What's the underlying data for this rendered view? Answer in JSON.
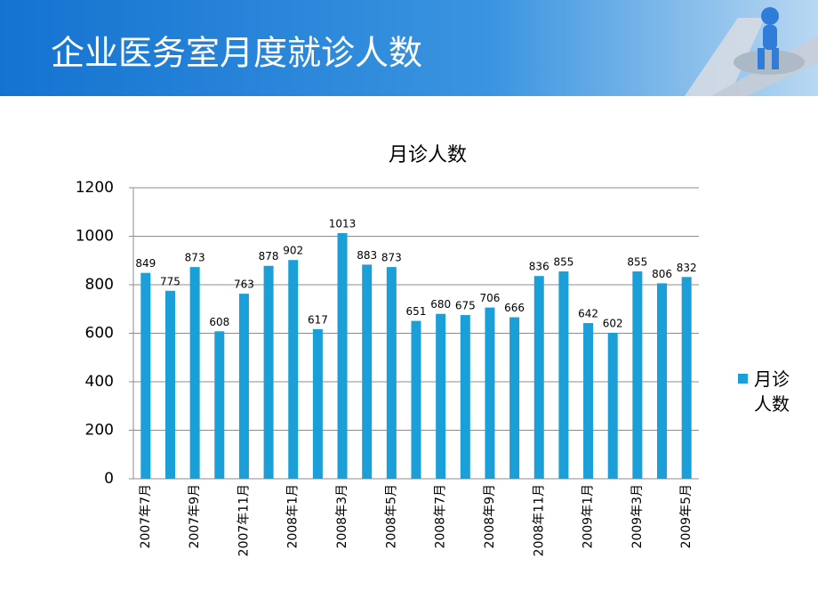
{
  "header": {
    "title": "企业医务室月度就诊人数"
  },
  "chart_data": {
    "type": "bar",
    "title": "月诊人数",
    "categories": [
      "2007年7月",
      null,
      "2007年9月",
      null,
      "2007年11月",
      null,
      "2008年1月",
      null,
      "2008年3月",
      null,
      "2008年5月",
      null,
      "2008年7月",
      null,
      "2008年9月",
      null,
      "2008年11月",
      null,
      "2009年1月",
      null,
      "2009年3月",
      null,
      "2009年5月"
    ],
    "series": [
      {
        "name": "月诊人数",
        "color": "#1a9fd8",
        "values": [
          849,
          775,
          873,
          608,
          763,
          878,
          902,
          617,
          1013,
          883,
          873,
          651,
          680,
          675,
          706,
          666,
          836,
          855,
          642,
          602,
          855,
          806,
          832
        ]
      }
    ],
    "ylim": [
      0,
      1200
    ],
    "yticks": [
      0,
      200,
      400,
      600,
      800,
      1000,
      1200
    ],
    "grid": true,
    "legend": "right"
  }
}
